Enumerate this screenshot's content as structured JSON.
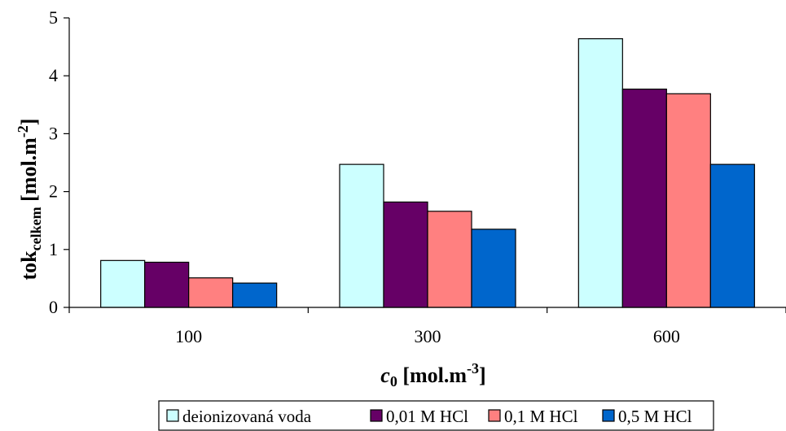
{
  "chart_data": {
    "type": "bar",
    "categories": [
      "100",
      "300",
      "600"
    ],
    "series": [
      {
        "name": "deionizovaná voda",
        "values": [
          0.81,
          2.47,
          4.64
        ],
        "color": "#CCFFFF"
      },
      {
        "name": "0,01 M HCl",
        "values": [
          0.78,
          1.82,
          3.77
        ],
        "color": "#660066"
      },
      {
        "name": "0,1 M HCl",
        "values": [
          0.51,
          1.66,
          3.69
        ],
        "color": "#FF8080"
      },
      {
        "name": "0,5 M HCl",
        "values": [
          0.42,
          1.35,
          2.47
        ],
        "color": "#0066CC"
      }
    ],
    "ylim": [
      0,
      5
    ],
    "yticks": [
      "0",
      "1",
      "2",
      "3",
      "4",
      "5"
    ],
    "xlabel": {
      "var": "c",
      "sub": "0",
      "unit_pre": " [mol.m",
      "unit_sup": "-3",
      "unit_post": "]"
    },
    "ylabel": {
      "main": "tok",
      "sub": "celkem",
      "unit_pre": " [mol.m",
      "unit_sup": "-2",
      "unit_post": "]"
    },
    "grid": false,
    "legend": "bottom"
  }
}
